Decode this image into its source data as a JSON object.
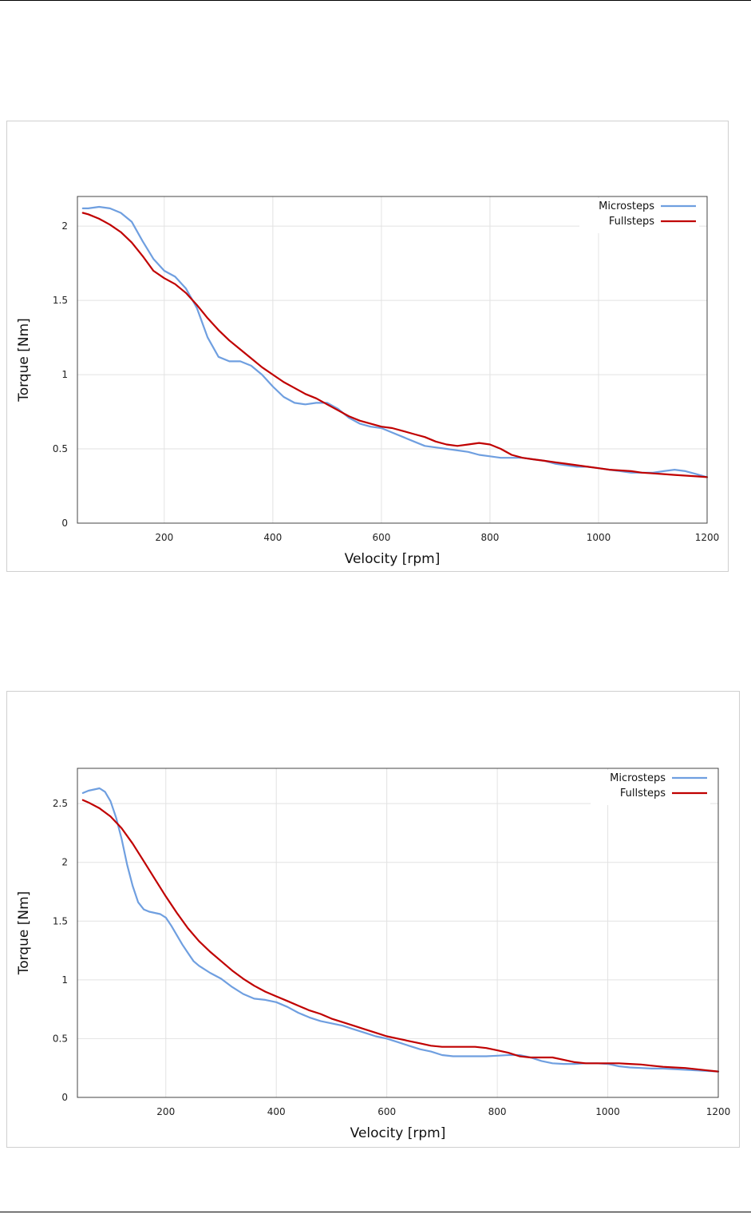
{
  "chart_data": [
    {
      "type": "line",
      "xlabel": "Velocity [rpm]",
      "ylabel": "Torque [Nm]",
      "xlim": [
        40,
        1200
      ],
      "ylim": [
        0,
        2.2
      ],
      "xticks": [
        200,
        400,
        600,
        800,
        1000,
        1200
      ],
      "yticks": [
        0,
        0.5,
        1,
        1.5,
        2
      ],
      "grid": true,
      "legend_position": "top-right",
      "series": [
        {
          "name": "Microsteps",
          "color": "#6f9fe0",
          "x": [
            50,
            60,
            80,
            100,
            120,
            140,
            160,
            180,
            200,
            220,
            240,
            260,
            280,
            300,
            320,
            340,
            360,
            380,
            400,
            420,
            440,
            460,
            480,
            500,
            520,
            540,
            560,
            580,
            600,
            620,
            640,
            660,
            680,
            700,
            720,
            740,
            760,
            780,
            800,
            820,
            840,
            860,
            880,
            900,
            920,
            940,
            960,
            980,
            1000,
            1020,
            1040,
            1060,
            1080,
            1100,
            1120,
            1140,
            1160,
            1180,
            1200
          ],
          "y": [
            2.12,
            2.12,
            2.13,
            2.12,
            2.09,
            2.03,
            1.9,
            1.78,
            1.7,
            1.66,
            1.58,
            1.45,
            1.25,
            1.12,
            1.09,
            1.09,
            1.06,
            1.0,
            0.92,
            0.85,
            0.81,
            0.8,
            0.81,
            0.81,
            0.77,
            0.71,
            0.67,
            0.65,
            0.64,
            0.61,
            0.58,
            0.55,
            0.52,
            0.51,
            0.5,
            0.49,
            0.48,
            0.46,
            0.45,
            0.44,
            0.44,
            0.44,
            0.43,
            0.42,
            0.4,
            0.39,
            0.38,
            0.38,
            0.37,
            0.36,
            0.35,
            0.34,
            0.34,
            0.34,
            0.35,
            0.36,
            0.35,
            0.33,
            0.31
          ]
        },
        {
          "name": "Fullsteps",
          "color": "#c00000",
          "x": [
            50,
            60,
            80,
            100,
            120,
            140,
            160,
            180,
            200,
            220,
            240,
            260,
            280,
            300,
            320,
            340,
            360,
            380,
            400,
            420,
            440,
            460,
            480,
            500,
            520,
            540,
            560,
            580,
            600,
            620,
            640,
            660,
            680,
            700,
            720,
            740,
            760,
            780,
            800,
            820,
            840,
            860,
            880,
            900,
            920,
            940,
            960,
            980,
            1000,
            1020,
            1040,
            1060,
            1080,
            1100,
            1120,
            1140,
            1160,
            1180,
            1200
          ],
          "y": [
            2.09,
            2.08,
            2.05,
            2.01,
            1.96,
            1.89,
            1.8,
            1.7,
            1.65,
            1.61,
            1.55,
            1.47,
            1.38,
            1.3,
            1.23,
            1.17,
            1.11,
            1.05,
            1.0,
            0.95,
            0.91,
            0.87,
            0.84,
            0.8,
            0.76,
            0.72,
            0.69,
            0.67,
            0.65,
            0.64,
            0.62,
            0.6,
            0.58,
            0.55,
            0.53,
            0.52,
            0.53,
            0.54,
            0.53,
            0.5,
            0.46,
            0.44,
            0.43,
            0.42,
            0.41,
            0.4,
            0.39,
            0.38,
            0.37,
            0.36,
            0.355,
            0.35,
            0.34,
            0.335,
            0.33,
            0.325,
            0.32,
            0.315,
            0.31
          ]
        }
      ]
    },
    {
      "type": "line",
      "xlabel": "Velocity [rpm]",
      "ylabel": "Torque [Nm]",
      "xlim": [
        40,
        1200
      ],
      "ylim": [
        0,
        2.8
      ],
      "xticks": [
        200,
        400,
        600,
        800,
        1000,
        1200
      ],
      "yticks": [
        0,
        0.5,
        1,
        1.5,
        2,
        2.5
      ],
      "grid": true,
      "legend_position": "top-right",
      "series": [
        {
          "name": "Microsteps",
          "color": "#6f9fe0",
          "x": [
            50,
            60,
            70,
            80,
            90,
            100,
            110,
            120,
            130,
            140,
            150,
            160,
            170,
            180,
            190,
            200,
            210,
            220,
            230,
            240,
            250,
            260,
            280,
            300,
            320,
            340,
            360,
            380,
            400,
            420,
            440,
            460,
            480,
            500,
            520,
            540,
            560,
            580,
            600,
            620,
            640,
            660,
            680,
            700,
            720,
            740,
            760,
            780,
            800,
            820,
            840,
            860,
            880,
            900,
            920,
            940,
            960,
            980,
            1000,
            1020,
            1040,
            1060,
            1080,
            1100,
            1120,
            1140,
            1160,
            1180,
            1200
          ],
          "y": [
            2.59,
            2.61,
            2.62,
            2.63,
            2.6,
            2.52,
            2.38,
            2.2,
            1.98,
            1.8,
            1.66,
            1.6,
            1.58,
            1.57,
            1.56,
            1.53,
            1.46,
            1.38,
            1.3,
            1.23,
            1.16,
            1.12,
            1.06,
            1.01,
            0.94,
            0.88,
            0.84,
            0.83,
            0.81,
            0.77,
            0.72,
            0.68,
            0.65,
            0.63,
            0.61,
            0.58,
            0.55,
            0.52,
            0.5,
            0.47,
            0.44,
            0.41,
            0.39,
            0.36,
            0.35,
            0.35,
            0.35,
            0.35,
            0.355,
            0.36,
            0.36,
            0.34,
            0.31,
            0.29,
            0.285,
            0.285,
            0.29,
            0.29,
            0.285,
            0.265,
            0.255,
            0.25,
            0.245,
            0.245,
            0.24,
            0.235,
            0.23,
            0.225,
            0.22
          ]
        },
        {
          "name": "Fullsteps",
          "color": "#c00000",
          "x": [
            50,
            60,
            80,
            100,
            120,
            140,
            160,
            180,
            200,
            220,
            240,
            260,
            280,
            300,
            320,
            340,
            360,
            380,
            400,
            420,
            440,
            460,
            480,
            500,
            520,
            540,
            560,
            580,
            600,
            620,
            640,
            660,
            680,
            700,
            720,
            740,
            760,
            780,
            800,
            820,
            840,
            860,
            880,
            900,
            920,
            940,
            960,
            980,
            1000,
            1020,
            1040,
            1060,
            1080,
            1100,
            1120,
            1140,
            1160,
            1180,
            1200
          ],
          "y": [
            2.53,
            2.51,
            2.46,
            2.39,
            2.29,
            2.16,
            2.01,
            1.86,
            1.71,
            1.57,
            1.44,
            1.33,
            1.24,
            1.16,
            1.08,
            1.01,
            0.95,
            0.9,
            0.86,
            0.82,
            0.78,
            0.74,
            0.71,
            0.67,
            0.64,
            0.61,
            0.58,
            0.55,
            0.52,
            0.5,
            0.48,
            0.46,
            0.44,
            0.43,
            0.43,
            0.43,
            0.43,
            0.42,
            0.4,
            0.38,
            0.35,
            0.34,
            0.34,
            0.34,
            0.32,
            0.3,
            0.29,
            0.29,
            0.29,
            0.29,
            0.285,
            0.28,
            0.27,
            0.26,
            0.255,
            0.25,
            0.24,
            0.23,
            0.22
          ]
        }
      ]
    }
  ]
}
